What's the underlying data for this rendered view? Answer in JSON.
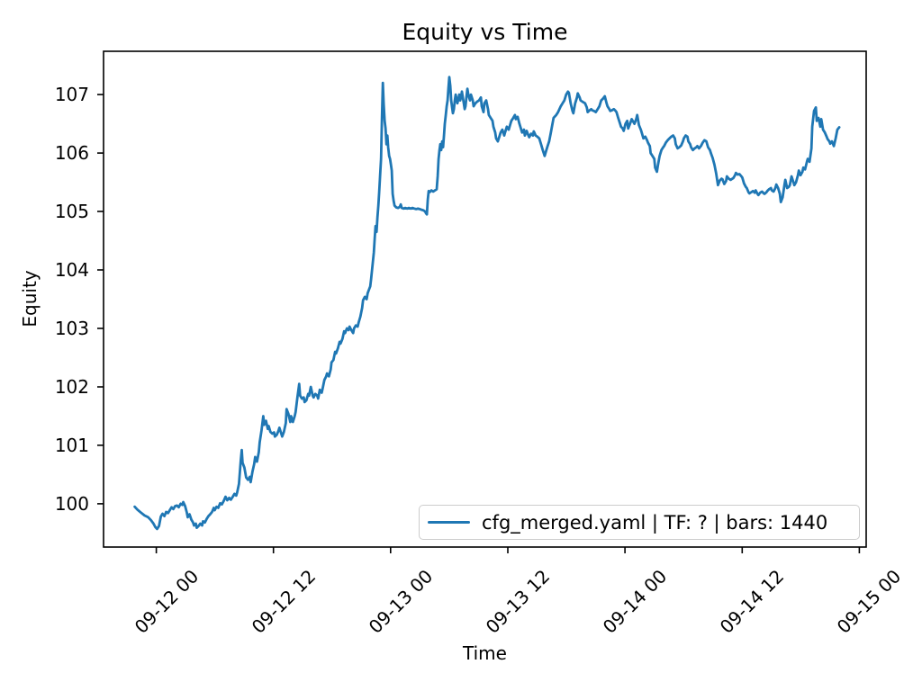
{
  "figure_bg": "#ffffff",
  "axis_color": "#000000",
  "chart_data": {
    "type": "line",
    "title": "Equity vs Time",
    "xlabel": "Time",
    "ylabel": "Equity",
    "grid": false,
    "legend_position": "lower right",
    "line_color": "#1f77b4",
    "legend_border_color": "#cccccc",
    "x_unit": "hours since 09-12 00:00",
    "xlim": [
      -5.4,
      72.7
    ],
    "ylim": [
      99.26,
      107.74
    ],
    "yticks": [
      100,
      101,
      102,
      103,
      104,
      105,
      106,
      107
    ],
    "xticks": [
      {
        "offset_hours": 0,
        "label": "09-12 00"
      },
      {
        "offset_hours": 12,
        "label": "09-12 12"
      },
      {
        "offset_hours": 24,
        "label": "09-13 00"
      },
      {
        "offset_hours": 36,
        "label": "09-13 12"
      },
      {
        "offset_hours": 48,
        "label": "09-14 00"
      },
      {
        "offset_hours": 60,
        "label": "09-14 12"
      },
      {
        "offset_hours": 72,
        "label": "09-15 00"
      }
    ],
    "series": [
      {
        "name": "cfg_merged.yaml | TF: ? | bars: 1440",
        "color": "#1f77b4",
        "x": [
          -2.21,
          -1.93,
          -1.57,
          -1.2,
          -0.83,
          -0.55,
          -0.28,
          -0.09,
          0.09,
          0.28,
          0.46,
          0.64,
          0.83,
          1.01,
          1.2,
          1.38,
          1.57,
          1.75,
          1.93,
          2.12,
          2.3,
          2.49,
          2.67,
          2.76,
          2.95,
          3.13,
          3.22,
          3.41,
          3.59,
          3.77,
          3.87,
          4.05,
          4.14,
          4.33,
          4.51,
          4.7,
          4.79,
          4.97,
          5.16,
          5.34,
          5.52,
          5.71,
          5.89,
          5.98,
          6.17,
          6.35,
          6.54,
          6.72,
          6.91,
          7.09,
          7.27,
          7.46,
          7.64,
          7.83,
          8.01,
          8.19,
          8.29,
          8.47,
          8.65,
          8.75,
          8.84,
          9.02,
          9.21,
          9.39,
          9.57,
          9.67,
          9.85,
          10.03,
          10.13,
          10.31,
          10.5,
          10.59,
          10.77,
          10.96,
          11.05,
          11.23,
          11.42,
          11.51,
          11.69,
          11.88,
          12.06,
          12.15,
          12.34,
          12.52,
          12.61,
          12.8,
          12.89,
          13.07,
          13.26,
          13.35,
          13.53,
          13.72,
          13.81,
          13.99,
          14.18,
          14.27,
          14.45,
          14.64,
          14.73,
          14.91,
          15.1,
          15.19,
          15.37,
          15.56,
          15.65,
          15.83,
          16.02,
          16.11,
          16.29,
          16.48,
          16.57,
          16.75,
          16.94,
          17.03,
          17.22,
          17.4,
          17.49,
          17.68,
          17.86,
          17.95,
          18.14,
          18.32,
          18.41,
          18.6,
          18.78,
          18.87,
          19.06,
          19.24,
          19.33,
          19.52,
          19.7,
          19.79,
          19.98,
          20.16,
          20.25,
          20.44,
          20.62,
          20.72,
          20.9,
          21.08,
          21.17,
          21.36,
          21.54,
          21.64,
          21.82,
          21.91,
          22.0,
          22.1,
          22.19,
          22.28,
          22.37,
          22.46,
          22.56,
          22.65,
          22.74,
          22.83,
          22.92,
          23.02,
          23.11,
          23.2,
          23.29,
          23.39,
          23.48,
          23.57,
          23.66,
          23.75,
          23.85,
          23.94,
          24.03,
          24.12,
          24.21,
          24.31,
          24.4,
          24.58,
          24.77,
          24.95,
          25.04,
          25.14,
          25.32,
          25.5,
          25.69,
          25.87,
          26.06,
          26.24,
          26.42,
          26.61,
          26.79,
          26.98,
          27.16,
          27.34,
          27.53,
          27.62,
          27.71,
          27.8,
          27.9,
          27.99,
          28.17,
          28.36,
          28.54,
          28.72,
          28.82,
          28.91,
          29.0,
          29.09,
          29.18,
          29.28,
          29.37,
          29.46,
          29.55,
          29.65,
          29.74,
          29.83,
          29.92,
          30.01,
          30.11,
          30.2,
          30.29,
          30.38,
          30.48,
          30.57,
          30.66,
          30.75,
          30.84,
          31.03,
          31.12,
          31.21,
          31.3,
          31.49,
          31.58,
          31.67,
          31.76,
          31.86,
          31.95,
          32.13,
          32.22,
          32.41,
          32.5,
          32.68,
          32.87,
          33.05,
          33.24,
          33.33,
          33.51,
          33.6,
          33.79,
          33.97,
          34.06,
          34.25,
          34.43,
          34.53,
          34.71,
          34.8,
          34.98,
          35.17,
          35.26,
          35.44,
          35.63,
          35.72,
          35.9,
          36.09,
          36.27,
          36.36,
          36.55,
          36.73,
          36.82,
          37.01,
          37.19,
          37.28,
          37.47,
          37.65,
          37.74,
          37.93,
          38.11,
          38.2,
          38.39,
          38.57,
          38.66,
          38.85,
          39.03,
          39.22,
          39.4,
          39.58,
          39.77,
          39.95,
          40.04,
          40.23,
          40.41,
          40.69,
          40.96,
          41.15,
          41.42,
          41.61,
          41.79,
          41.98,
          42.16,
          42.25,
          42.44,
          42.62,
          42.71,
          42.9,
          43.08,
          43.17,
          43.36,
          43.45,
          43.63,
          43.82,
          43.91,
          44.09,
          44.18,
          44.37,
          44.55,
          44.64,
          44.83,
          45.01,
          45.2,
          45.38,
          45.56,
          45.75,
          45.93,
          46.12,
          46.21,
          46.39,
          46.49,
          46.67,
          46.85,
          47.04,
          47.13,
          47.31,
          47.5,
          47.59,
          47.77,
          47.87,
          48.05,
          48.23,
          48.33,
          48.51,
          48.69,
          48.79,
          48.97,
          49.15,
          49.25,
          49.43,
          49.62,
          49.71,
          49.89,
          50.08,
          50.26,
          50.35,
          50.54,
          50.63,
          50.81,
          51.0,
          51.09,
          51.27,
          51.36,
          51.55,
          51.73,
          51.92,
          52.01,
          52.19,
          52.38,
          52.56,
          52.74,
          52.93,
          53.11,
          53.2,
          53.39,
          53.57,
          53.76,
          53.94,
          54.03,
          54.21,
          54.4,
          54.49,
          54.67,
          54.77,
          54.95,
          55.13,
          55.32,
          55.41,
          55.59,
          55.78,
          55.96,
          56.14,
          56.33,
          56.51,
          56.7,
          56.79,
          56.97,
          57.16,
          57.34,
          57.52,
          57.71,
          57.89,
          57.98,
          58.17,
          58.35,
          58.44,
          58.63,
          58.81,
          59.0,
          59.09,
          59.27,
          59.36,
          59.55,
          59.73,
          59.92,
          60.01,
          60.19,
          60.37,
          60.47,
          60.65,
          60.74,
          60.93,
          61.11,
          61.29,
          61.39,
          61.57,
          61.66,
          61.84,
          62.03,
          62.21,
          62.3,
          62.49,
          62.58,
          62.76,
          62.94,
          63.04,
          63.22,
          63.4,
          63.5,
          63.68,
          63.86,
          63.96,
          64.14,
          64.32,
          64.42,
          64.6,
          64.78,
          64.88,
          65.06,
          65.25,
          65.34,
          65.52,
          65.71,
          65.8,
          65.98,
          66.17,
          66.26,
          66.44,
          66.63,
          66.72,
          66.9,
          67.09,
          67.18,
          67.36,
          67.55,
          67.64,
          67.82,
          68.01,
          68.1,
          68.28,
          68.47,
          68.65,
          68.74,
          68.93,
          69.02,
          69.2,
          69.39,
          69.57,
          69.75,
          69.94
        ],
        "y": [
          99.95,
          99.9,
          99.85,
          99.8,
          99.77,
          99.72,
          99.66,
          99.6,
          99.57,
          99.62,
          99.78,
          99.83,
          99.79,
          99.86,
          99.84,
          99.89,
          99.94,
          99.91,
          99.96,
          99.97,
          99.94,
          100.0,
          99.98,
          100.03,
          99.96,
          99.85,
          99.77,
          99.82,
          99.73,
          99.68,
          99.63,
          99.66,
          99.59,
          99.62,
          99.66,
          99.63,
          99.7,
          99.68,
          99.74,
          99.79,
          99.82,
          99.86,
          99.93,
          99.89,
          99.95,
          99.93,
          100.01,
          99.99,
          100.05,
          100.12,
          100.06,
          100.1,
          100.07,
          100.12,
          100.17,
          100.14,
          100.2,
          100.34,
          100.74,
          100.92,
          100.7,
          100.62,
          100.45,
          100.41,
          100.46,
          100.37,
          100.55,
          100.68,
          100.8,
          100.72,
          100.88,
          101.05,
          101.25,
          101.5,
          101.35,
          101.42,
          101.28,
          101.33,
          101.23,
          101.2,
          101.22,
          101.15,
          101.18,
          101.25,
          101.3,
          101.2,
          101.15,
          101.23,
          101.38,
          101.62,
          101.54,
          101.4,
          101.5,
          101.4,
          101.5,
          101.57,
          101.82,
          102.05,
          101.85,
          101.8,
          101.82,
          101.74,
          101.77,
          101.88,
          101.85,
          102.0,
          101.85,
          101.82,
          101.88,
          101.85,
          101.8,
          101.95,
          101.9,
          101.97,
          102.12,
          102.18,
          102.23,
          102.18,
          102.3,
          102.42,
          102.46,
          102.6,
          102.57,
          102.66,
          102.77,
          102.74,
          102.82,
          102.95,
          102.92,
          103.0,
          102.97,
          103.03,
          102.97,
          102.92,
          103.0,
          103.05,
          103.03,
          103.1,
          103.2,
          103.35,
          103.48,
          103.54,
          103.5,
          103.6,
          103.68,
          103.72,
          103.85,
          104.0,
          104.15,
          104.3,
          104.55,
          104.75,
          104.65,
          104.9,
          105.1,
          105.35,
          105.6,
          105.9,
          106.6,
          107.2,
          106.85,
          106.55,
          106.42,
          106.15,
          106.3,
          106.1,
          105.95,
          105.9,
          105.8,
          105.7,
          105.3,
          105.18,
          105.1,
          105.07,
          105.06,
          105.08,
          105.12,
          105.06,
          105.05,
          105.06,
          105.05,
          105.06,
          105.05,
          105.06,
          105.05,
          105.04,
          105.05,
          105.04,
          105.03,
          105.02,
          105.0,
          104.97,
          104.95,
          105.2,
          105.35,
          105.33,
          105.36,
          105.34,
          105.36,
          105.38,
          105.6,
          105.9,
          106.05,
          106.15,
          106.05,
          106.2,
          106.1,
          106.3,
          106.5,
          106.65,
          106.8,
          106.9,
          107.1,
          107.3,
          107.15,
          106.9,
          106.78,
          106.68,
          106.75,
          106.9,
          107.0,
          106.92,
          106.85,
          107.0,
          106.9,
          106.95,
          107.05,
          106.85,
          106.75,
          106.8,
          106.95,
          107.1,
          107.0,
          106.9,
          107.0,
          106.9,
          106.8,
          106.85,
          106.88,
          106.9,
          106.95,
          106.8,
          106.7,
          106.85,
          106.9,
          106.75,
          106.65,
          106.6,
          106.55,
          106.45,
          106.35,
          106.25,
          106.2,
          106.3,
          106.35,
          106.4,
          106.3,
          106.35,
          106.45,
          106.4,
          106.5,
          106.55,
          106.6,
          106.65,
          106.58,
          106.62,
          106.5,
          106.45,
          106.35,
          106.4,
          106.3,
          106.38,
          106.3,
          106.27,
          106.33,
          106.3,
          106.37,
          106.3,
          106.28,
          106.25,
          106.15,
          106.05,
          105.95,
          106.05,
          106.1,
          106.2,
          106.35,
          106.6,
          106.65,
          106.7,
          106.8,
          106.85,
          106.9,
          107.0,
          107.05,
          107.03,
          106.85,
          106.72,
          106.68,
          106.85,
          106.95,
          107.02,
          106.95,
          106.9,
          106.88,
          106.86,
          106.85,
          106.78,
          106.7,
          106.73,
          106.75,
          106.73,
          106.72,
          106.7,
          106.75,
          106.8,
          106.9,
          106.93,
          106.97,
          106.85,
          106.8,
          106.75,
          106.72,
          106.73,
          106.75,
          106.72,
          106.7,
          106.6,
          106.5,
          106.45,
          106.42,
          106.38,
          106.5,
          106.55,
          106.42,
          106.5,
          106.58,
          106.55,
          106.5,
          106.58,
          106.65,
          106.48,
          106.4,
          106.35,
          106.25,
          106.28,
          106.22,
          106.18,
          106.12,
          106.0,
          105.95,
          105.9,
          105.75,
          105.68,
          105.78,
          105.95,
          106.05,
          106.1,
          106.12,
          106.18,
          106.22,
          106.25,
          106.28,
          106.3,
          106.25,
          106.15,
          106.08,
          106.1,
          106.13,
          106.2,
          106.25,
          106.3,
          106.28,
          106.2,
          106.15,
          106.1,
          106.05,
          106.08,
          106.1,
          106.12,
          106.08,
          106.12,
          106.18,
          106.22,
          106.2,
          106.1,
          106.05,
          106.0,
          105.92,
          105.8,
          105.65,
          105.45,
          105.53,
          105.56,
          105.55,
          105.47,
          105.52,
          105.6,
          105.56,
          105.54,
          105.56,
          105.57,
          105.62,
          105.66,
          105.63,
          105.64,
          105.6,
          105.58,
          105.48,
          105.42,
          105.4,
          105.33,
          105.31,
          105.33,
          105.35,
          105.32,
          105.36,
          105.3,
          105.28,
          105.32,
          105.34,
          105.31,
          105.3,
          105.33,
          105.35,
          105.38,
          105.4,
          105.36,
          105.34,
          105.4,
          105.46,
          105.4,
          105.3,
          105.16,
          105.24,
          105.44,
          105.54,
          105.4,
          105.42,
          105.45,
          105.6,
          105.5,
          105.45,
          105.5,
          105.62,
          105.7,
          105.62,
          105.68,
          105.75,
          105.72,
          105.85,
          105.9,
          105.85,
          106.08,
          106.45,
          106.72,
          106.78,
          106.55,
          106.6,
          106.45,
          106.58,
          106.4,
          106.35,
          106.28,
          106.24,
          106.2,
          106.16,
          106.2,
          106.12,
          106.25,
          106.4,
          106.44
        ]
      }
    ]
  }
}
